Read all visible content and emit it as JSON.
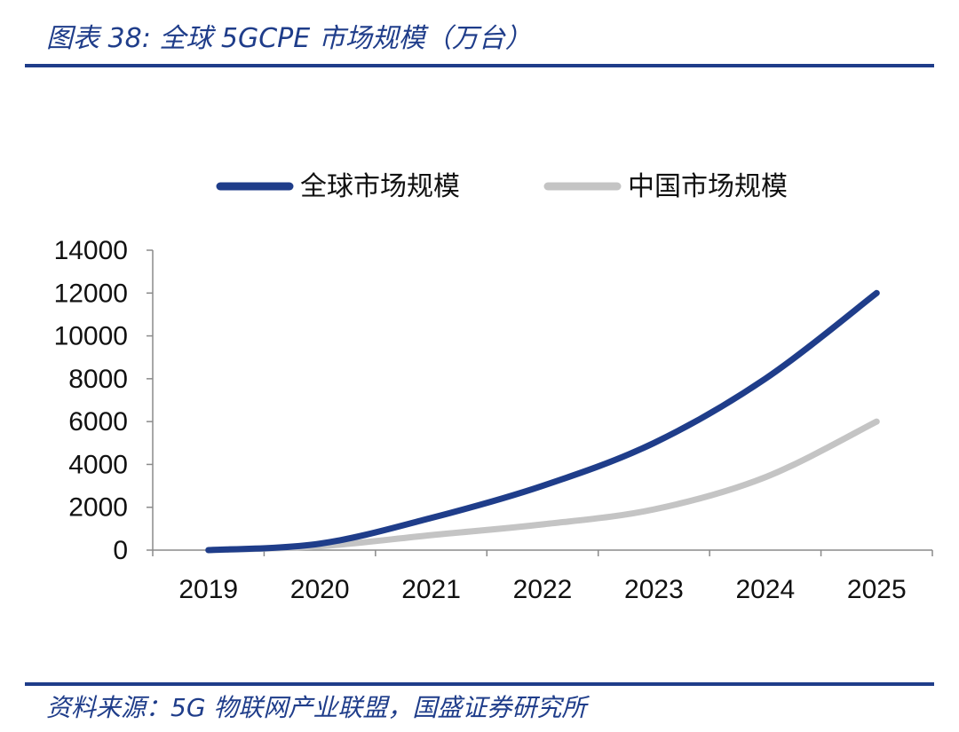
{
  "figure_title": "图表 38:  全球 5GCPE 市场规模（万台）",
  "source": "资料来源：5G 物联网产业联盟，国盛证券研究所",
  "colors": {
    "rule": "#1f3d8a",
    "global": "#1f3d8a",
    "china": "#c4c4c4"
  },
  "chart_data": {
    "type": "line",
    "title": "全球 5GCPE 市场规模（万台）",
    "xlabel": "",
    "ylabel": "",
    "x": [
      "2019",
      "2020",
      "2021",
      "2022",
      "2023",
      "2024",
      "2025"
    ],
    "ylim": [
      0,
      14000
    ],
    "yticks": [
      0,
      2000,
      4000,
      6000,
      8000,
      10000,
      12000,
      14000
    ],
    "grid": false,
    "legend_position": "top",
    "series": [
      {
        "name": "全球市场规模",
        "color": "#1f3d8a",
        "values": [
          0,
          300,
          1500,
          3000,
          5000,
          8000,
          12000
        ]
      },
      {
        "name": "中国市场规模",
        "color": "#c4c4c4",
        "values": [
          0,
          180,
          700,
          1200,
          1900,
          3400,
          6000
        ]
      }
    ]
  }
}
